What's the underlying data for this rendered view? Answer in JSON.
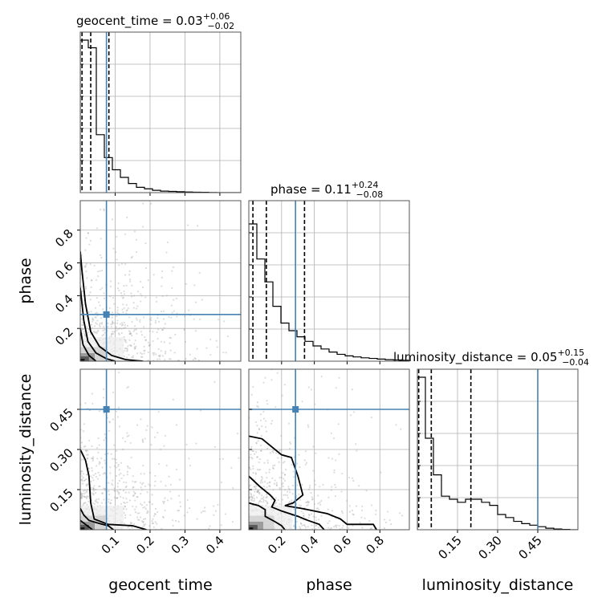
{
  "chart_data": {
    "type": "corner",
    "parameters": [
      "geocent_time",
      "phase",
      "luminosity_distance"
    ],
    "colors": {
      "truth": "#4682b4",
      "hist": "#000000",
      "grid": "#b0b0b0",
      "scatter": "#9a9a9a"
    },
    "titles": [
      {
        "param": "geocent_time",
        "median": "0.03",
        "plus": "+0.06",
        "minus": "−0.02"
      },
      {
        "param": "phase",
        "median": "0.11",
        "plus": "+0.24",
        "minus": "−0.08"
      },
      {
        "param": "luminosity_distance",
        "median": "0.05",
        "plus": "+0.15",
        "minus": "−0.04"
      }
    ],
    "axes": {
      "geocent_time": {
        "range": [
          0.0,
          0.46
        ],
        "ticks": [
          0.1,
          0.2,
          0.3,
          0.4
        ],
        "tick_labels": [
          "0.1",
          "0.2",
          "0.3",
          "0.4"
        ]
      },
      "phase": {
        "range": [
          0.0,
          0.98
        ],
        "ticks": [
          0.2,
          0.4,
          0.6,
          0.8
        ],
        "tick_labels": [
          "0.2",
          "0.4",
          "0.6",
          "0.8"
        ]
      },
      "luminosity_distance": {
        "range": [
          0.0,
          0.6
        ],
        "ticks": [
          0.15,
          0.3,
          0.45
        ],
        "tick_labels": [
          "0.15",
          "0.30",
          "0.45"
        ]
      }
    },
    "truths": {
      "geocent_time": 0.075,
      "phase": 0.285,
      "luminosity_distance": 0.45
    },
    "quantiles": {
      "geocent_time": [
        0.005,
        0.03,
        0.082
      ],
      "phase": [
        0.025,
        0.107,
        0.34
      ],
      "luminosity_distance": [
        0.005,
        0.052,
        0.2
      ]
    },
    "histograms": {
      "geocent_time": [
        1.0,
        0.95,
        0.38,
        0.23,
        0.15,
        0.1,
        0.06,
        0.035,
        0.025,
        0.015,
        0.01,
        0.008,
        0.006,
        0.004,
        0.003,
        0.002,
        0.001,
        0,
        0,
        0
      ],
      "phase": [
        0.9,
        0.67,
        0.52,
        0.36,
        0.25,
        0.2,
        0.16,
        0.13,
        0.1,
        0.08,
        0.06,
        0.045,
        0.035,
        0.028,
        0.022,
        0.018,
        0.014,
        0.01,
        0.008,
        0.006
      ],
      "luminosity_distance": [
        1.0,
        0.6,
        0.36,
        0.22,
        0.2,
        0.18,
        0.2,
        0.2,
        0.18,
        0.16,
        0.1,
        0.08,
        0.055,
        0.04,
        0.03,
        0.02,
        0.01,
        0.005,
        0.002,
        0
      ]
    },
    "contours": {
      "phase|geocent_time": [
        [
          [
            0.0,
            0.67
          ],
          [
            0.005,
            0.55
          ],
          [
            0.015,
            0.35
          ],
          [
            0.03,
            0.18
          ],
          [
            0.055,
            0.09
          ],
          [
            0.09,
            0.035
          ],
          [
            0.13,
            0.01
          ],
          [
            0.18,
            0.0
          ]
        ],
        [
          [
            0.0,
            0.45
          ],
          [
            0.01,
            0.25
          ],
          [
            0.022,
            0.12
          ],
          [
            0.045,
            0.05
          ],
          [
            0.075,
            0.015
          ],
          [
            0.1,
            0.0
          ]
        ],
        [
          [
            0.0,
            0.2
          ],
          [
            0.008,
            0.1
          ],
          [
            0.025,
            0.035
          ],
          [
            0.045,
            0.0
          ]
        ]
      ],
      "luminosity_distance|geocent_time": [
        [
          [
            0.0,
            0.3
          ],
          [
            0.015,
            0.26
          ],
          [
            0.025,
            0.2
          ],
          [
            0.03,
            0.1
          ],
          [
            0.04,
            0.04
          ],
          [
            0.08,
            0.02
          ],
          [
            0.15,
            0.015
          ],
          [
            0.19,
            0.0
          ]
        ],
        [
          [
            0.0,
            0.08
          ],
          [
            0.01,
            0.055
          ],
          [
            0.025,
            0.035
          ],
          [
            0.05,
            0.025
          ],
          [
            0.08,
            0.015
          ],
          [
            0.095,
            0.0
          ]
        ],
        [
          [
            0.0,
            0.035
          ],
          [
            0.01,
            0.025
          ],
          [
            0.02,
            0.015
          ],
          [
            0.035,
            0.0
          ]
        ]
      ],
      "luminosity_distance|phase": [
        [
          [
            0.0,
            0.35
          ],
          [
            0.08,
            0.34
          ],
          [
            0.14,
            0.31
          ],
          [
            0.2,
            0.28
          ],
          [
            0.26,
            0.27
          ],
          [
            0.3,
            0.2
          ],
          [
            0.33,
            0.13
          ],
          [
            0.27,
            0.1
          ],
          [
            0.22,
            0.09
          ],
          [
            0.32,
            0.08
          ],
          [
            0.48,
            0.06
          ],
          [
            0.56,
            0.04
          ],
          [
            0.6,
            0.02
          ],
          [
            0.68,
            0.02
          ],
          [
            0.76,
            0.02
          ],
          [
            0.78,
            0.0
          ]
        ],
        [
          [
            0.0,
            0.2
          ],
          [
            0.07,
            0.16
          ],
          [
            0.13,
            0.13
          ],
          [
            0.16,
            0.11
          ],
          [
            0.14,
            0.085
          ],
          [
            0.2,
            0.07
          ],
          [
            0.3,
            0.05
          ],
          [
            0.36,
            0.035
          ],
          [
            0.43,
            0.02
          ],
          [
            0.46,
            0.0
          ]
        ],
        [
          [
            0.0,
            0.1
          ],
          [
            0.06,
            0.09
          ],
          [
            0.1,
            0.075
          ],
          [
            0.1,
            0.05
          ],
          [
            0.16,
            0.03
          ],
          [
            0.2,
            0.015
          ],
          [
            0.22,
            0.0
          ]
        ]
      ]
    }
  }
}
